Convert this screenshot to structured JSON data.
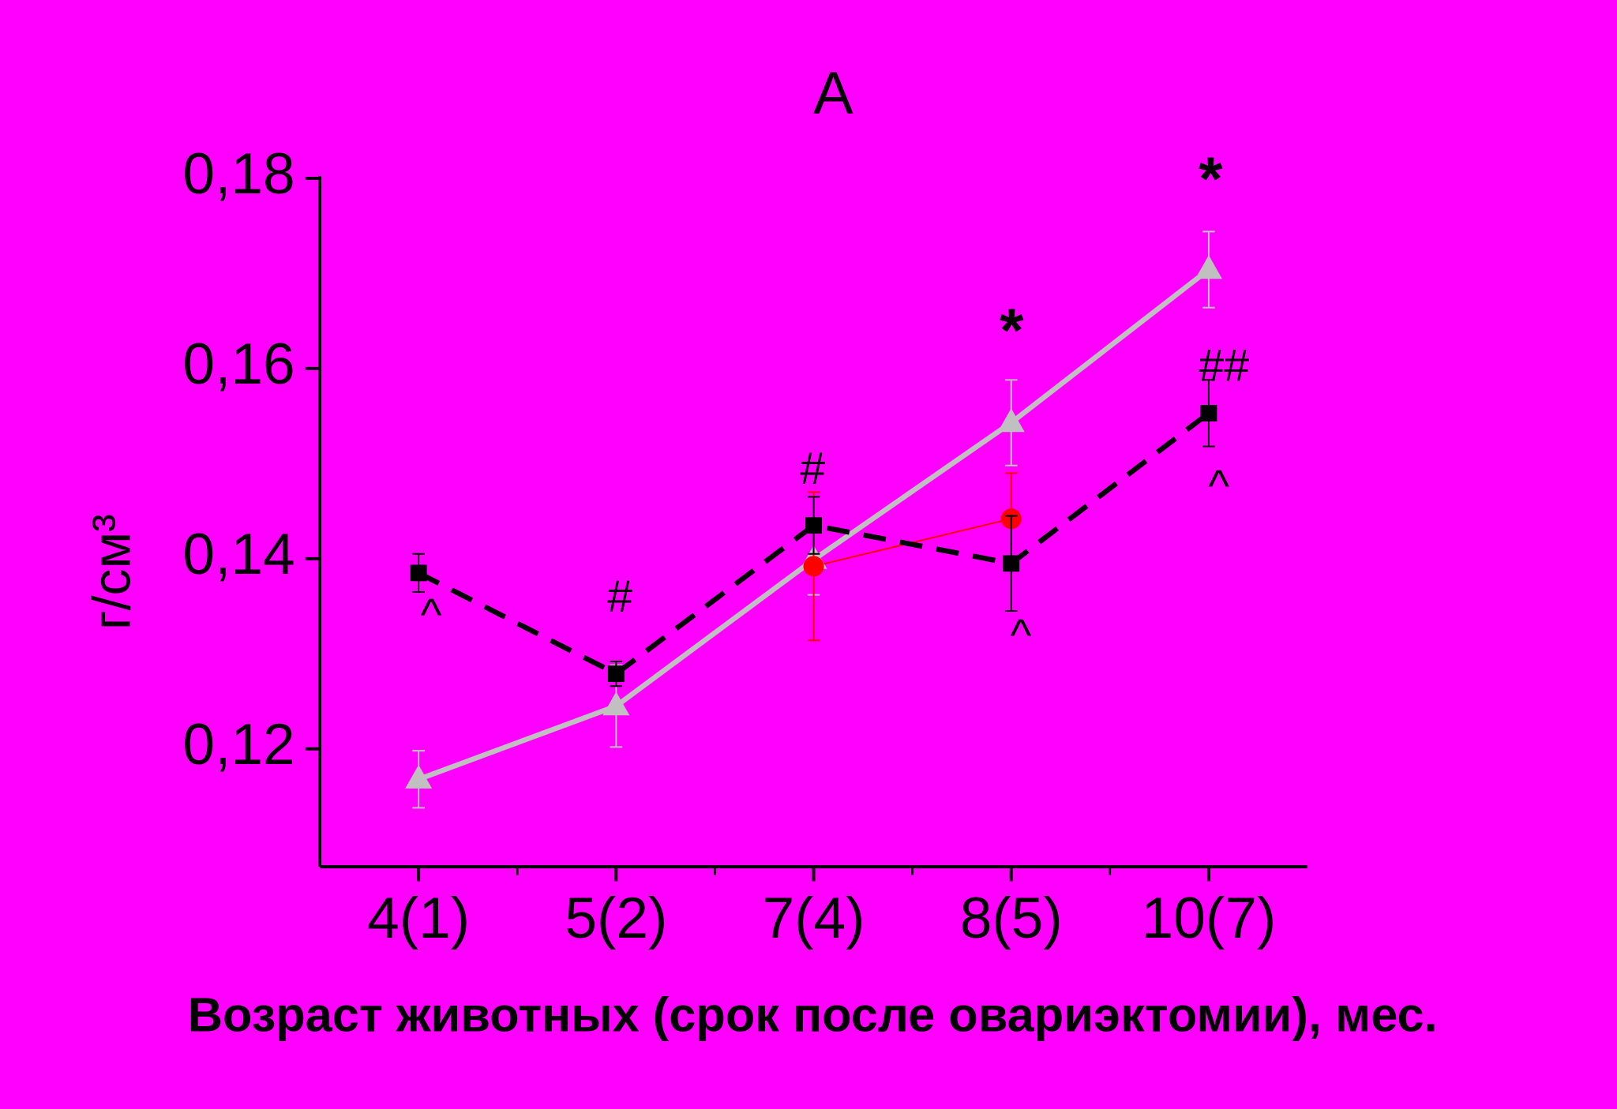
{
  "chart_data": {
    "type": "line",
    "title": "A",
    "y_label": "г/см³",
    "x_label": "Возраст животных (срок после овариэктомии), мес.",
    "categories": [
      "4(1)",
      "5(2)",
      "7(4)",
      "8(5)",
      "10(7)"
    ],
    "ylim": [
      0.1076,
      0.18
    ],
    "yticks": [
      {
        "value": 0.12,
        "label": "0,12"
      },
      {
        "value": 0.14,
        "label": "0,14"
      },
      {
        "value": 0.16,
        "label": "0,16"
      },
      {
        "value": 0.18,
        "label": "0,18"
      }
    ],
    "series": [
      {
        "color": "#c0c0c0",
        "marker": "triangle",
        "line_style": "solid",
        "values": [
          0.1168,
          0.1245,
          0.1399,
          0.1543,
          0.1704
        ],
        "errors": [
          0.003,
          0.0043,
          0.0037,
          0.0045,
          0.004
        ]
      },
      {
        "color": "#ff0000",
        "marker": "circle",
        "line_style": "thin",
        "values": [
          null,
          null,
          0.1392,
          0.1442,
          null
        ],
        "errors": [
          null,
          null,
          0.0078,
          0.0048,
          null
        ]
      },
      {
        "color": "#000000",
        "marker": "square",
        "line_style": "dashed",
        "values": [
          0.1385,
          0.1279,
          0.1435,
          0.1395,
          0.1553
        ],
        "errors": [
          0.002,
          0.0013,
          0.003,
          0.005,
          0.0035
        ]
      }
    ],
    "annotations": [
      "^",
      "#",
      "#",
      "*",
      "^",
      "*",
      "##",
      "^"
    ]
  }
}
